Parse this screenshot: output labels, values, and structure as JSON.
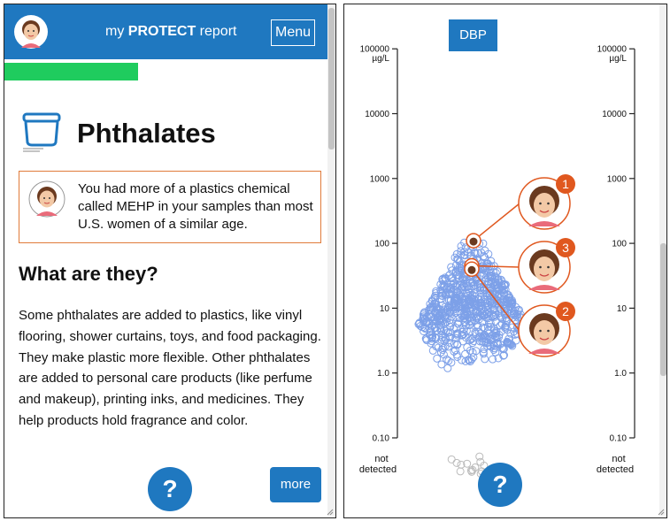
{
  "header": {
    "title_prefix": "my ",
    "title_bold": "PROTECT",
    "title_suffix": " report",
    "menu_label": "Menu"
  },
  "progress": {
    "fraction": 0.41
  },
  "section": {
    "title": "Phthalates",
    "callout": "You had more of a plastics chemical called MEHP in your samples than most U.S. women of a similar age.",
    "subtitle": "What are they?",
    "paragraph": "Some phthalates are added to plastics, like vinyl flooring, shower curtains, toys, and food packaging. They make plastic more flexible. Other phthalates are added to personal care products (like perfume and makeup), printing inks, and medicines. They help products hold fragrance and color."
  },
  "buttons": {
    "help_label": "?",
    "more_label": "more"
  },
  "chart_data": {
    "type": "scatter",
    "chemical_label": "DBP",
    "y_scale": "log",
    "unit_label": "µg/L",
    "y_ticks": [
      "100000",
      "10000",
      "1000",
      "100",
      "10",
      "1.0",
      "0.10"
    ],
    "not_detected_line1": "not",
    "not_detected_line2": "detected",
    "markers": [
      {
        "label": "1",
        "value": 110
      },
      {
        "label": "3",
        "value": 45
      },
      {
        "label": "2",
        "value": 40
      }
    ]
  },
  "colors": {
    "brand_blue": "#1f78c0",
    "progress_green": "#1fcc5e",
    "accent_orange": "#e0581f",
    "point_blue": "#7da0e8"
  }
}
